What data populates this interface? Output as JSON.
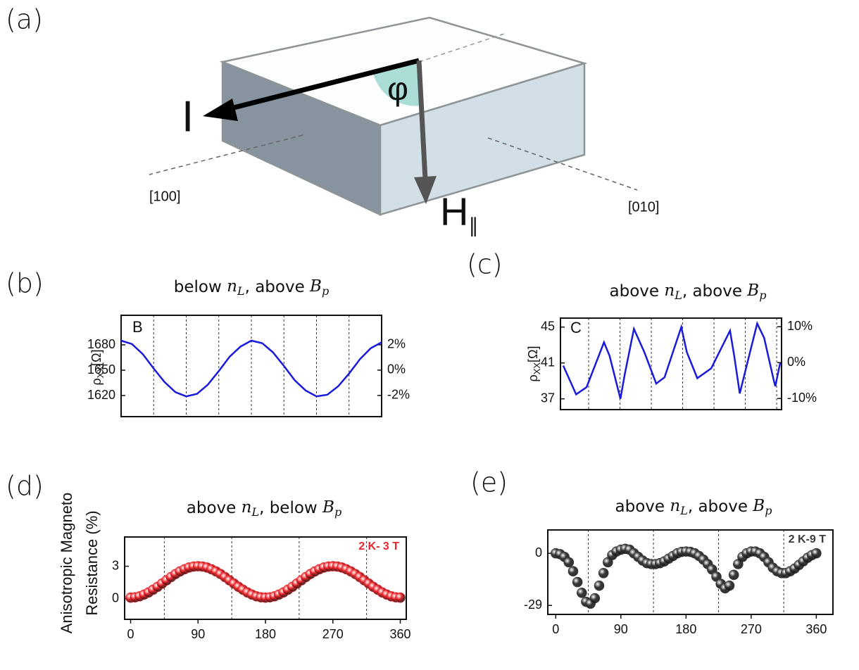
{
  "diagram": {
    "panel": "(a)",
    "current": "I",
    "angle": "φ",
    "field": "H",
    "field_sub": "∥",
    "dir1": "[100]",
    "dir2": "[010]"
  },
  "chart_data": [
    {
      "type": "line",
      "panel": "(b)",
      "letter": "B",
      "title": [
        {
          "text": "below "
        },
        {
          "math": "n",
          "sub": "L"
        },
        {
          "text": ", above "
        },
        {
          "math": "B",
          "sub": "p"
        }
      ],
      "ylabel": {
        "symbol": "ρ",
        "sub": "XX",
        "unit": "[Ω]"
      },
      "x": [
        0,
        15,
        30,
        45,
        60,
        75,
        90,
        105,
        120,
        135,
        150,
        165,
        180,
        195,
        210,
        225,
        240,
        255,
        270,
        285,
        300,
        315,
        330,
        345,
        360
      ],
      "series": [
        {
          "color": "#1a1adb",
          "values": [
            1685,
            1681,
            1669,
            1652,
            1636,
            1624,
            1619,
            1622,
            1633,
            1649,
            1666,
            1678,
            1685,
            1682,
            1671,
            1655,
            1638,
            1626,
            1619,
            1621,
            1631,
            1646,
            1663,
            1676,
            1683
          ]
        }
      ],
      "xlim": [
        0,
        360
      ],
      "vlines": [
        45,
        90,
        135,
        180,
        225,
        270,
        315
      ],
      "ylim": [
        1595,
        1715
      ],
      "yticks": [
        1620,
        1650,
        1680
      ],
      "y2lim": [
        -3.67,
        4.33
      ],
      "y2ticks": [
        {
          "value": -2,
          "label": "-2%"
        },
        {
          "value": 0,
          "label": "0%"
        },
        {
          "value": 2,
          "label": "2%"
        }
      ]
    },
    {
      "type": "line",
      "panel": "(c)",
      "letter": "C",
      "title": [
        {
          "text": "above "
        },
        {
          "math": "n",
          "sub": "L"
        },
        {
          "text": ", above "
        },
        {
          "math": "B",
          "sub": "p"
        }
      ],
      "ylabel": {
        "symbol": "ρ",
        "sub": "XX",
        "unit": "[Ω]"
      },
      "x": [
        8.5,
        27,
        42,
        67,
        75,
        90.6,
        97,
        110,
        125,
        142,
        154,
        178,
        186,
        201,
        221,
        248,
        254,
        262,
        269,
        287,
        297,
        311,
        313,
        320
      ],
      "series": [
        {
          "color": "#1a1adb",
          "values": [
            40.7,
            37.5,
            38.3,
            43.3,
            41.8,
            37,
            39.8,
            44.8,
            42.2,
            38.7,
            39.4,
            45,
            42.2,
            39.3,
            40.4,
            44.6,
            41.8,
            37.6,
            39.8,
            45.4,
            43.8,
            39,
            38.4,
            41
          ]
        }
      ],
      "xlim": [
        4.5,
        322
      ],
      "vlines": [
        45,
        90,
        135,
        180,
        225,
        270,
        315
      ],
      "ylim": [
        35.8,
        46
      ],
      "yticks": [
        37,
        41,
        45
      ],
      "y2lim": [
        -13.1,
        12.4
      ],
      "y2ticks": [
        {
          "value": -10,
          "label": "-10%"
        },
        {
          "value": 0,
          "label": "0%"
        },
        {
          "value": 10,
          "label": "10%"
        }
      ]
    },
    {
      "type": "scatter",
      "panel": "(d)",
      "annotation": "2 K- 3 T",
      "title": [
        {
          "text": "above "
        },
        {
          "math": "n",
          "sub": "L"
        },
        {
          "text": ", below "
        },
        {
          "math": "B",
          "sub": "p"
        }
      ],
      "ylabel": [
        "Anisotropic Magneto",
        "Resistance (%)"
      ],
      "x": [
        0,
        6,
        12,
        18,
        24,
        30,
        36,
        42,
        48,
        54,
        60,
        66,
        72,
        78,
        84,
        90,
        96,
        102,
        108,
        114,
        120,
        126,
        132,
        138,
        144,
        150,
        156,
        162,
        168,
        174,
        180,
        186,
        192,
        198,
        204,
        210,
        216,
        222,
        228,
        234,
        240,
        246,
        252,
        258,
        264,
        270,
        276,
        282,
        288,
        294,
        300,
        306,
        312,
        318,
        324,
        330,
        336,
        342,
        348,
        354,
        360
      ],
      "series": [
        {
          "color": "#e8262b",
          "values": [
            0.1,
            0.13,
            0.22,
            0.38,
            0.58,
            0.83,
            1.1,
            1.4,
            1.7,
            2.0,
            2.28,
            2.52,
            2.72,
            2.88,
            2.97,
            3.0,
            2.97,
            2.88,
            2.72,
            2.52,
            2.28,
            2.0,
            1.7,
            1.4,
            1.1,
            0.83,
            0.58,
            0.38,
            0.22,
            0.13,
            0.1,
            0.13,
            0.22,
            0.38,
            0.58,
            0.83,
            1.1,
            1.4,
            1.7,
            2.0,
            2.28,
            2.52,
            2.72,
            2.88,
            2.97,
            3.0,
            2.97,
            2.88,
            2.72,
            2.52,
            2.28,
            2.0,
            1.7,
            1.4,
            1.1,
            0.83,
            0.58,
            0.38,
            0.22,
            0.13,
            0.1
          ]
        }
      ],
      "xlim": [
        -8,
        368
      ],
      "xticks": [
        0,
        90,
        180,
        270,
        360
      ],
      "vlines": [
        45,
        135,
        225,
        315
      ],
      "ylim": [
        -1.9,
        5.7
      ],
      "yticks": [
        0,
        3
      ]
    },
    {
      "type": "scatter",
      "panel": "(e)",
      "annotation": "2 K-9 T",
      "title": [
        {
          "text": "above "
        },
        {
          "math": "n",
          "sub": "L"
        },
        {
          "text": ", above "
        },
        {
          "math": "B",
          "sub": "p"
        }
      ],
      "x": [
        0,
        6,
        12,
        18,
        24,
        30,
        36,
        42,
        48,
        54,
        60,
        66,
        72,
        78,
        84,
        90,
        96,
        102,
        108,
        114,
        120,
        126,
        132,
        138,
        144,
        150,
        156,
        162,
        168,
        174,
        180,
        186,
        192,
        198,
        204,
        210,
        216,
        222,
        228,
        234,
        240,
        246,
        252,
        258,
        264,
        270,
        276,
        282,
        288,
        294,
        300,
        306,
        312,
        318,
        324,
        330,
        336,
        342,
        348,
        354,
        360
      ],
      "series": [
        {
          "color": "#3a3a3a",
          "values": [
            0,
            -0.5,
            -2,
            -5,
            -10,
            -16,
            -22,
            -27,
            -28,
            -25,
            -18,
            -11,
            -5,
            -1,
            1,
            2,
            2.5,
            2,
            0,
            -2,
            -4,
            -5.5,
            -6,
            -6,
            -5.5,
            -4.5,
            -3,
            -1.5,
            0,
            0.8,
            1,
            0.8,
            0,
            -1.5,
            -3.5,
            -6,
            -9,
            -13,
            -17,
            -19.5,
            -18,
            -12,
            -6,
            -2,
            0,
            1,
            1,
            0,
            -2,
            -5,
            -8,
            -10,
            -11,
            -11,
            -10,
            -8.5,
            -6.5,
            -4.5,
            -2.5,
            -1,
            0
          ]
        }
      ],
      "xlim": [
        -11,
        383
      ],
      "xticks": [
        0,
        90,
        180,
        270,
        360
      ],
      "vlines": [
        45,
        135,
        225,
        315
      ],
      "ylim": [
        -34,
        13
      ],
      "yticks": [
        -29,
        0
      ]
    }
  ]
}
